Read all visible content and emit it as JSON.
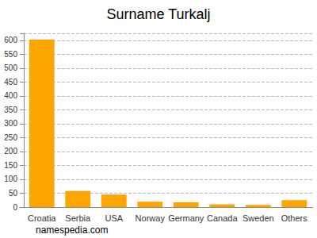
{
  "chart_data": {
    "type": "bar",
    "title": "Surname Turkalj",
    "annotation": "namespedia.com",
    "categories": [
      "Croatia",
      "Serbia",
      "USA",
      "Norway",
      "Germany",
      "Canada",
      "Sweden",
      "Others"
    ],
    "values": [
      603,
      58,
      45,
      19,
      17,
      10,
      8,
      25
    ],
    "color": "#ffa500",
    "ylim": [
      0,
      625
    ],
    "yticks": [
      0,
      50,
      100,
      150,
      200,
      250,
      300,
      350,
      400,
      450,
      500,
      550,
      600
    ],
    "grid": true
  }
}
